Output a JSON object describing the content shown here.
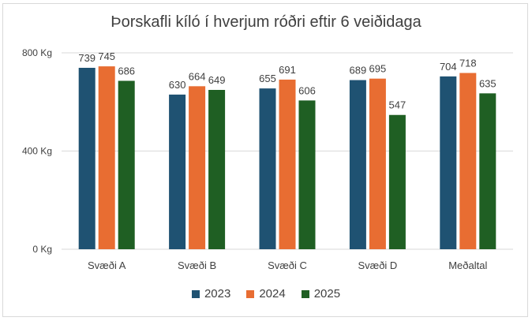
{
  "chart_data": {
    "type": "bar",
    "title": "Þorskafli kíló í hverjum róðri eftir 6 veiðidaga",
    "categories": [
      "Svæði A",
      "Svæði B",
      "Svæði C",
      "Svæði D",
      "Meðaltal"
    ],
    "series": [
      {
        "name": "2023",
        "color": "#1f5272",
        "values": [
          739,
          630,
          655,
          689,
          704
        ]
      },
      {
        "name": "2024",
        "color": "#e86d32",
        "values": [
          745,
          664,
          691,
          695,
          718
        ]
      },
      {
        "name": "2025",
        "color": "#1f5f23",
        "values": [
          686,
          649,
          606,
          547,
          635
        ]
      }
    ],
    "y_ticks": [
      {
        "value": 0,
        "label": "0 Kg"
      },
      {
        "value": 400,
        "label": "400 Kg"
      },
      {
        "value": 800,
        "label": "800 Kg"
      }
    ],
    "ylim": [
      0,
      800
    ],
    "grid": true,
    "legend_position": "bottom",
    "data_labels": true
  }
}
